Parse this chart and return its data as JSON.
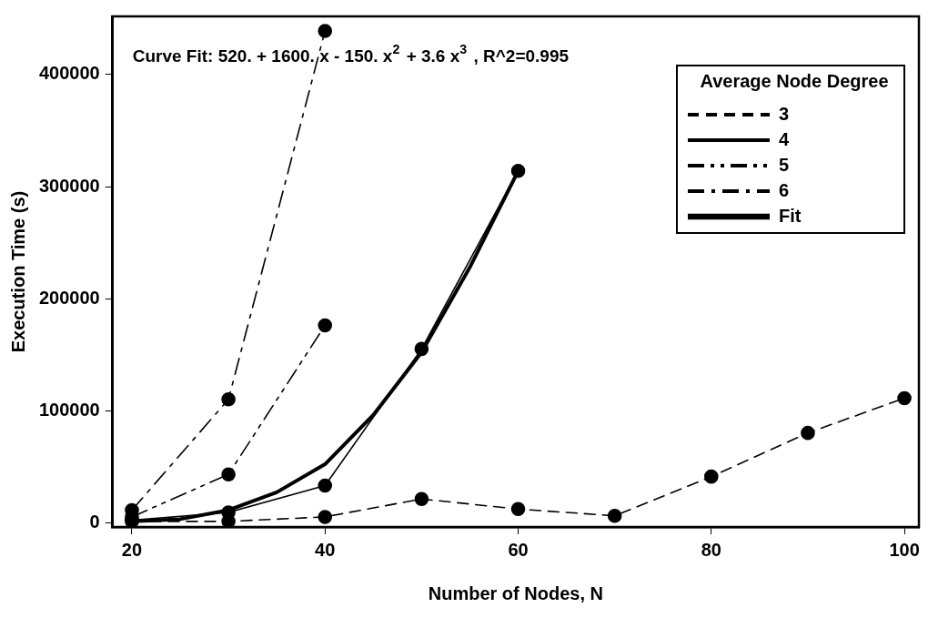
{
  "chart_data": {
    "type": "line",
    "xlabel": "Number of Nodes, N",
    "ylabel": "Execution Time (s)",
    "legend_title": "Average Node Degree",
    "xlim": [
      18,
      101.5
    ],
    "ylim": [
      -4000,
      452000
    ],
    "xticks": [
      20,
      40,
      60,
      80,
      100
    ],
    "yticks": [
      0,
      100000,
      200000,
      300000,
      400000
    ],
    "grid": false,
    "legend": "top right",
    "marker": "circle",
    "annotations": [
      "Curve Fit: 520. + 1600. x - 150. x$^{2}$ + 3.6 x$^{3}$ , R^2=0.995"
    ],
    "series": [
      {
        "name": "3",
        "color": "#000000",
        "line_style": "dashed",
        "x": [
          20,
          30,
          40,
          50,
          60,
          70,
          80,
          90,
          100
        ],
        "values": [
          1000,
          1000,
          5000,
          21000,
          12000,
          6000,
          41000,
          80000,
          111000
        ]
      },
      {
        "name": "4",
        "color": "#000000",
        "line_style": "solid",
        "x": [
          20,
          30,
          40,
          50,
          60
        ],
        "values": [
          2000,
          9000,
          33000,
          155000,
          314000
        ]
      },
      {
        "name": "5",
        "color": "#000000",
        "line_style": "dashdotdot",
        "x": [
          20,
          30,
          40
        ],
        "values": [
          5000,
          43000,
          176000
        ]
      },
      {
        "name": "6",
        "color": "#000000",
        "line_style": "dashdot",
        "x": [
          20,
          30,
          40
        ],
        "values": [
          11000,
          110000,
          439000
        ]
      },
      {
        "name": "Fit",
        "color": "#000000",
        "line_style": "solid",
        "marker": "none",
        "x": [
          20,
          25,
          30,
          35,
          40,
          45,
          50,
          55,
          60
        ],
        "values": [
          1000,
          3000,
          11000,
          27000,
          52000,
          96000,
          152000,
          228000,
          314000
        ]
      }
    ]
  }
}
